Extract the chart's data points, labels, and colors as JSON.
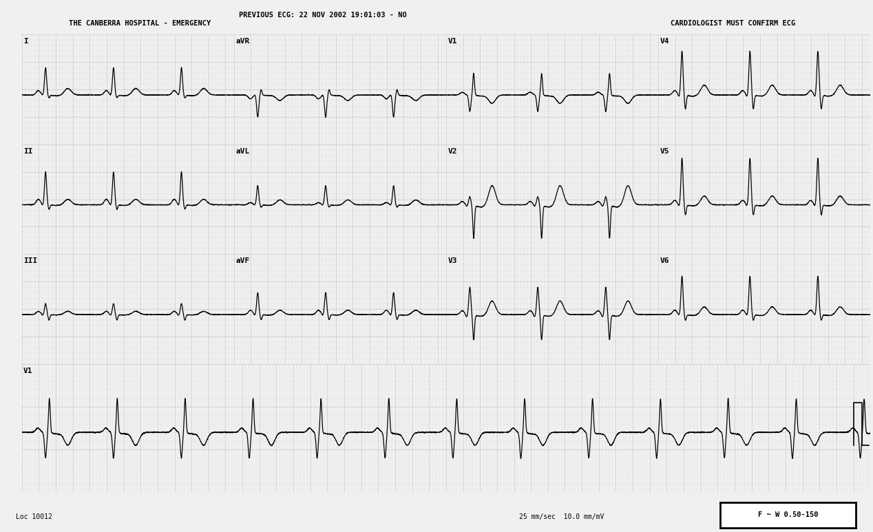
{
  "title_line1": "PREVIOUS ECG: 22 NOV 2002 19:01:03 - NO",
  "title_line2": "THE CANBERRA HOSPITAL - EMERGENCY",
  "title_right": "CARDIOLOGIST MUST CONFIRM ECG",
  "footer_left": "Loc 10012",
  "footer_right": "25 mm/sec  10.0 mm/mV",
  "footer_box": "F ~ W 0.50-150",
  "bg_color": "#f0f0ee",
  "grid_minor_color": "#aaaaaa",
  "grid_major_color": "#888888",
  "ecg_color": "#000000",
  "text_color": "#000000",
  "leads": [
    "I",
    "II",
    "III",
    "aVR",
    "aVL",
    "aVF",
    "V1",
    "V2",
    "V3",
    "V4",
    "V5",
    "V6"
  ],
  "sample_rate": 500,
  "duration": 2.5,
  "heart_rate": 75
}
